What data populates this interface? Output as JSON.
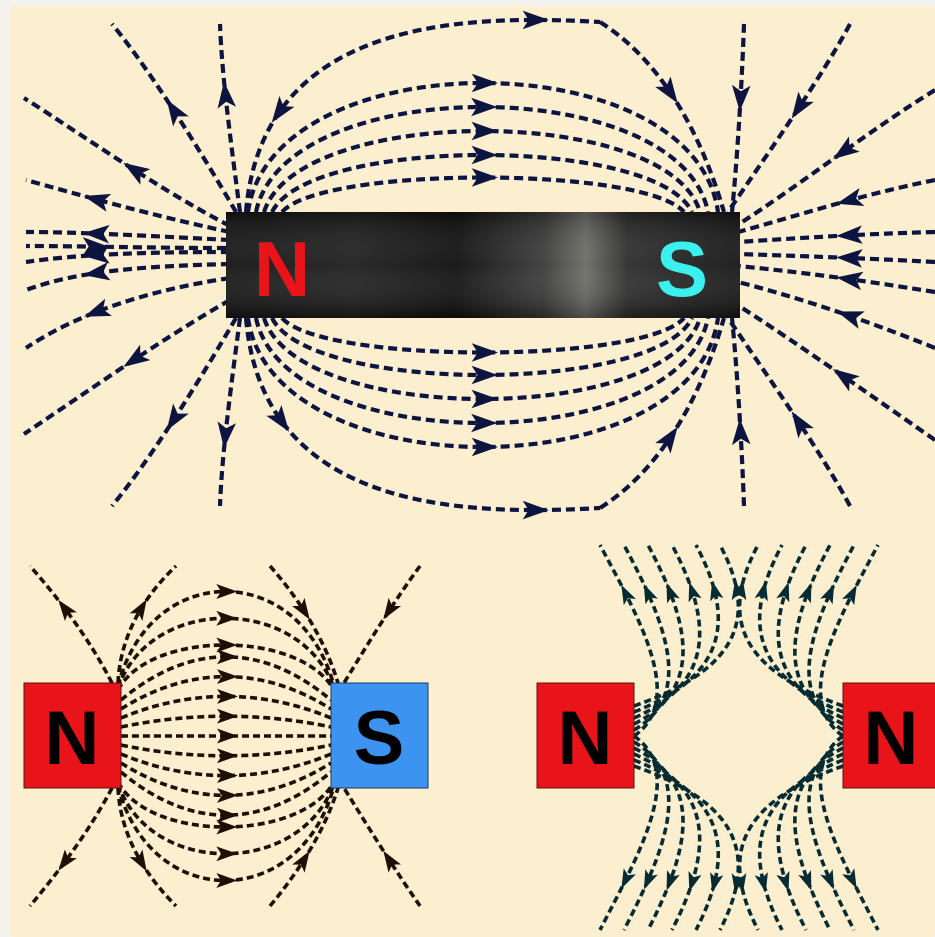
{
  "colors": {
    "background": "#fcefcf",
    "outer_frame": "#f3f2ee",
    "field_line_main": "#0d1440",
    "field_line_attract": "#1e0f05",
    "field_line_repel": "#062b33",
    "north_red": "#e8141a",
    "south_cyan": "#3cf0f0",
    "south_blue": "#3d93f0",
    "bar_magnet": "#1a1a1a"
  },
  "bar_magnet": {
    "north_label": "N",
    "south_label": "S"
  },
  "attract_pair": {
    "north_label": "N",
    "south_label": "S"
  },
  "repel_pair": {
    "left_label": "N",
    "right_label": "N"
  },
  "icons": {
    "arrow": "arrowhead-icon"
  }
}
